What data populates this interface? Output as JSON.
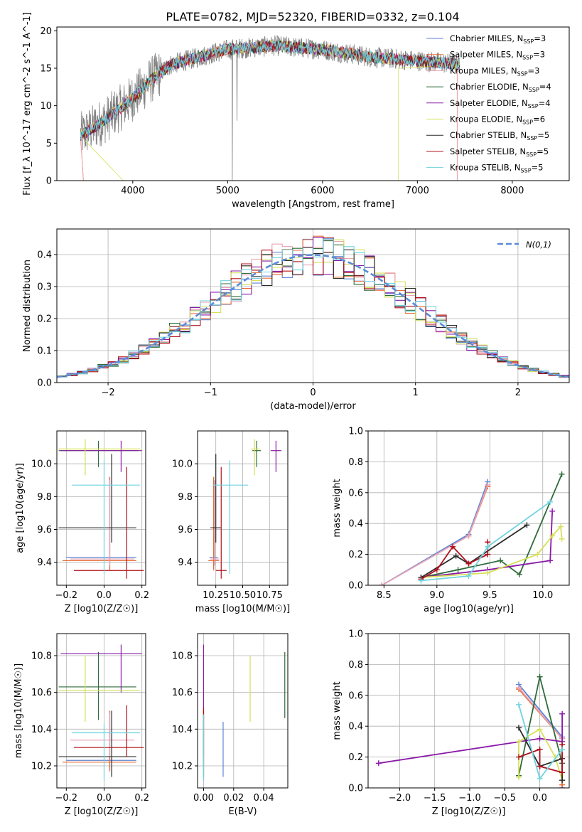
{
  "title": "PLATE=0782, MJD=52320, FIBERID=0332, z=0.104",
  "model_colors": [
    "#5b84d6",
    "#e86b35",
    "#e8a3b3",
    "#2e6b3a",
    "#8a1aa8",
    "#d6e05a",
    "#2b2b2b",
    "#b0101c",
    "#6fd3e0"
  ],
  "chart_data": [
    {
      "id": "spectrum",
      "type": "line",
      "xlabel": "wavelength [Angstrom, rest frame]",
      "ylabel": "Flux [f_λ 10^-17 erg cm^-2 s^-1 A^-1]",
      "xlim": [
        3200,
        8600
      ],
      "ylim": [
        0,
        20.5
      ],
      "xticks": [
        4000,
        5000,
        6000,
        7000,
        8000
      ],
      "yticks": [
        0,
        5,
        10,
        15,
        20
      ],
      "grid": false,
      "legend": "top-right",
      "data_color": "#808080",
      "data_profile": {
        "x": [
          3450,
          3700,
          3850,
          4000,
          4200,
          4400,
          4700,
          5000,
          5500,
          6000,
          6500,
          7000,
          7450
        ],
        "y": [
          6,
          8,
          9.5,
          11,
          13.5,
          15.5,
          16.5,
          17.5,
          18,
          17.5,
          16.5,
          16,
          15.5
        ]
      },
      "series": [
        {
          "name": "Chabrier MILES",
          "nssp": "3"
        },
        {
          "name": "Salpeter MILES",
          "nssp": "3"
        },
        {
          "name": "Kroupa MILES",
          "nssp": "3"
        },
        {
          "name": "Chabrier ELODIE",
          "nssp": "4"
        },
        {
          "name": "Salpeter ELODIE",
          "nssp": "4"
        },
        {
          "name": "Kroupa ELODIE",
          "nssp": "6"
        },
        {
          "name": "Chabrier STELIB",
          "nssp": "5"
        },
        {
          "name": "Salpeter STELIB",
          "nssp": "5"
        },
        {
          "name": "Kroupa STELIB",
          "nssp": "5"
        }
      ]
    },
    {
      "id": "residuals",
      "type": "histogram",
      "xlabel": "(data-model)/error",
      "ylabel": "Normed distribution",
      "xlim": [
        -2.5,
        2.5
      ],
      "ylim": [
        0,
        0.48
      ],
      "xticks": [
        -2,
        -1,
        0,
        1,
        2
      ],
      "yticks": [
        0.0,
        0.1,
        0.2,
        0.3,
        0.4
      ],
      "grid": true,
      "legend": "top-right",
      "reference_label": "N(0,1)",
      "bin_width": 0.1
    },
    {
      "id": "age_vs_Z",
      "type": "errorbar",
      "xlabel": "Z [log10(Z/Z☉)]",
      "ylabel": "age  [log10(age/yr)]",
      "xlim": [
        -0.25,
        0.22
      ],
      "ylim": [
        9.26,
        10.2
      ],
      "xticks": [
        -0.2,
        0.0,
        0.2
      ],
      "yticks": [
        9.4,
        9.6,
        9.8,
        10.0
      ],
      "grid": true,
      "points": [
        {
          "x": 0.03,
          "xlo": -0.2,
          "xhi": 0.17,
          "y": 9.43,
          "ylo": 9.36,
          "yhi": 9.92
        },
        {
          "x": 0.03,
          "xlo": -0.22,
          "xhi": 0.17,
          "y": 9.41,
          "ylo": 9.35,
          "yhi": 9.92
        },
        {
          "x": 0.03,
          "xlo": -0.18,
          "xhi": 0.16,
          "y": 9.42,
          "ylo": 9.38,
          "yhi": 9.9
        },
        {
          "x": -0.03,
          "xlo": -0.24,
          "xhi": 0.18,
          "y": 10.08,
          "ylo": 9.98,
          "yhi": 10.14
        },
        {
          "x": 0.09,
          "xlo": -0.23,
          "xhi": 0.2,
          "y": 10.08,
          "ylo": 9.95,
          "yhi": 10.14
        },
        {
          "x": -0.1,
          "xlo": -0.24,
          "xhi": 0.19,
          "y": 10.09,
          "ylo": 9.93,
          "yhi": 10.15
        },
        {
          "x": 0.04,
          "xlo": -0.24,
          "xhi": 0.17,
          "y": 9.61,
          "ylo": 9.52,
          "yhi": 10.06
        },
        {
          "x": 0.12,
          "xlo": -0.16,
          "xhi": 0.21,
          "y": 9.35,
          "ylo": 9.3,
          "yhi": 9.98
        },
        {
          "x": 0.0,
          "xlo": -0.17,
          "xhi": 0.19,
          "y": 9.87,
          "ylo": 9.33,
          "yhi": 10.02
        }
      ]
    },
    {
      "id": "age_vs_mass",
      "type": "errorbar",
      "xlabel": "mass [log10(M/M☉)]",
      "ylabel": "",
      "xlim": [
        10.08,
        10.92
      ],
      "ylim": [
        9.26,
        10.2
      ],
      "xticks": [
        10.25,
        10.5,
        10.75
      ],
      "yticks": [
        9.4,
        9.6,
        9.8,
        10.0
      ],
      "grid": true,
      "points": [
        {
          "x": 10.23,
          "xlo": 10.19,
          "xhi": 10.27,
          "y": 9.43,
          "ylo": 9.36,
          "yhi": 9.92
        },
        {
          "x": 10.23,
          "xlo": 10.18,
          "xhi": 10.28,
          "y": 9.41,
          "ylo": 9.35,
          "yhi": 9.92
        },
        {
          "x": 10.24,
          "xlo": 10.2,
          "xhi": 10.28,
          "y": 9.42,
          "ylo": 9.38,
          "yhi": 9.9
        },
        {
          "x": 10.63,
          "xlo": 10.59,
          "xhi": 10.67,
          "y": 10.08,
          "ylo": 9.98,
          "yhi": 10.14
        },
        {
          "x": 10.81,
          "xlo": 10.76,
          "xhi": 10.86,
          "y": 10.08,
          "ylo": 9.95,
          "yhi": 10.14
        },
        {
          "x": 10.61,
          "xlo": 10.58,
          "xhi": 10.66,
          "y": 10.09,
          "ylo": 9.93,
          "yhi": 10.15
        },
        {
          "x": 10.25,
          "xlo": 10.2,
          "xhi": 10.3,
          "y": 9.61,
          "ylo": 9.52,
          "yhi": 10.06
        },
        {
          "x": 10.3,
          "xlo": 10.25,
          "xhi": 10.35,
          "y": 9.35,
          "ylo": 9.3,
          "yhi": 9.98
        },
        {
          "x": 10.38,
          "xlo": 10.22,
          "xhi": 10.55,
          "y": 9.87,
          "ylo": 9.33,
          "yhi": 10.02
        }
      ]
    },
    {
      "id": "weight_vs_age",
      "type": "line",
      "xlabel": "age  [log10(age/yr)]",
      "ylabel": "mass weight",
      "xlim": [
        8.35,
        10.25
      ],
      "ylim": [
        0,
        1.0
      ],
      "xticks": [
        8.5,
        9.0,
        9.5,
        10.0
      ],
      "yticks": [
        0.0,
        0.2,
        0.4,
        0.6,
        0.8,
        1.0
      ],
      "grid": true,
      "series": [
        {
          "x": [
            8.48,
            9.3,
            9.48
          ],
          "y": [
            0.0,
            0.33,
            0.67
          ]
        },
        {
          "x": [
            9.3,
            9.48
          ],
          "y": [
            0.32,
            0.64
          ]
        },
        {
          "x": [
            8.48,
            9.3,
            9.48
          ],
          "y": [
            0.0,
            0.32,
            0.65
          ]
        },
        {
          "x": [
            8.85,
            9.2,
            9.6,
            9.78,
            10.18
          ],
          "y": [
            0.05,
            0.1,
            0.16,
            0.07,
            0.72
          ]
        },
        {
          "x": [
            8.85,
            9.48,
            10.07,
            10.09
          ],
          "y": [
            0.05,
            0.1,
            0.16,
            0.48
          ]
        },
        {
          "x": [
            8.85,
            9.48,
            9.95,
            10.09,
            10.17,
            10.18
          ],
          "y": [
            0.05,
            0.08,
            0.2,
            0.32,
            0.38,
            0.3
          ]
        },
        {
          "x": [
            8.85,
            9.18,
            9.3,
            9.85
          ],
          "y": [
            0.05,
            0.19,
            0.14,
            0.39
          ]
        },
        {
          "x": [
            8.85,
            9.0,
            9.15,
            9.3,
            9.48,
            9.48
          ],
          "y": [
            0.04,
            0.1,
            0.25,
            0.14,
            0.2,
            0.28
          ]
        },
        {
          "x": [
            8.85,
            9.3,
            9.48,
            10.07
          ],
          "y": [
            0.03,
            0.06,
            0.25,
            0.54
          ]
        }
      ]
    },
    {
      "id": "mass_vs_Z",
      "type": "errorbar",
      "xlabel": "Z [log10(Z/Z☉)]",
      "ylabel": "mass [log10(M/M☉)]",
      "xlim": [
        -0.25,
        0.22
      ],
      "ylim": [
        10.08,
        10.92
      ],
      "xticks": [
        -0.2,
        0.0,
        0.2
      ],
      "yticks": [
        10.2,
        10.4,
        10.6,
        10.8
      ],
      "grid": true,
      "points": [
        {
          "x": 0.03,
          "xlo": -0.2,
          "xhi": 0.17,
          "y": 10.23,
          "ylo": 10.18,
          "yhi": 10.5
        },
        {
          "x": 0.03,
          "xlo": -0.22,
          "xhi": 0.17,
          "y": 10.22,
          "ylo": 10.17,
          "yhi": 10.5
        },
        {
          "x": 0.03,
          "xlo": -0.18,
          "xhi": 0.16,
          "y": 10.34,
          "ylo": 10.25,
          "yhi": 10.49
        },
        {
          "x": -0.03,
          "xlo": -0.24,
          "xhi": 0.17,
          "y": 10.63,
          "ylo": 10.45,
          "yhi": 10.82
        },
        {
          "x": 0.09,
          "xlo": -0.23,
          "xhi": 0.2,
          "y": 10.81,
          "ylo": 10.6,
          "yhi": 10.86
        },
        {
          "x": -0.1,
          "xlo": -0.24,
          "xhi": 0.19,
          "y": 10.61,
          "ylo": 10.44,
          "yhi": 10.8
        },
        {
          "x": 0.04,
          "xlo": -0.24,
          "xhi": 0.17,
          "y": 10.25,
          "ylo": 10.14,
          "yhi": 10.5
        },
        {
          "x": 0.12,
          "xlo": -0.16,
          "xhi": 0.21,
          "y": 10.3,
          "ylo": 10.25,
          "yhi": 10.53
        },
        {
          "x": 0.0,
          "xlo": -0.17,
          "xhi": 0.19,
          "y": 10.38,
          "ylo": 10.12,
          "yhi": 10.43
        }
      ]
    },
    {
      "id": "mass_vs_ebv",
      "type": "errorbar",
      "xlabel": "E(B-V)",
      "ylabel": "",
      "xlim": [
        -0.004,
        0.056
      ],
      "ylim": [
        10.08,
        10.92
      ],
      "xticks": [
        0.0,
        0.02,
        0.04
      ],
      "yticks": [
        10.2,
        10.4,
        10.6,
        10.8
      ],
      "grid": true,
      "points": [
        {
          "x": 0.013,
          "y": 10.29,
          "ylo": 10.14,
          "yhi": 10.44
        },
        {
          "x": 0.0,
          "y": 10.3,
          "ylo": 10.12,
          "yhi": 10.5
        },
        {
          "x": 0.0,
          "y": 10.33,
          "ylo": 10.18,
          "yhi": 10.5
        },
        {
          "x": 0.054,
          "y": 10.64,
          "ylo": 10.46,
          "yhi": 10.82
        },
        {
          "x": 0.0,
          "y": 10.7,
          "ylo": 10.5,
          "yhi": 10.86
        },
        {
          "x": 0.031,
          "y": 10.62,
          "ylo": 10.44,
          "yhi": 10.8
        },
        {
          "x": 0.0,
          "y": 10.28,
          "ylo": 10.14,
          "yhi": 10.5
        },
        {
          "x": 0.0,
          "y": 10.38,
          "ylo": 10.25,
          "yhi": 10.52
        },
        {
          "x": 0.0,
          "y": 10.3,
          "ylo": 10.12,
          "yhi": 10.48
        }
      ]
    },
    {
      "id": "weight_vs_Z",
      "type": "line",
      "xlabel": "Z [log10(Z/Z☉)]",
      "ylabel": "mass weight",
      "xlim": [
        -2.45,
        0.42
      ],
      "ylim": [
        0,
        1.0
      ],
      "xticks": [
        -2.0,
        -1.5,
        -1.0,
        -0.5,
        0.0
      ],
      "yticks": [
        0.0,
        0.2,
        0.4,
        0.6,
        0.8,
        1.0
      ],
      "grid": true,
      "series": [
        {
          "x": [
            -0.3,
            0.32,
            0.32
          ],
          "y": [
            0.67,
            0.33,
            0.0
          ]
        },
        {
          "x": [
            -0.3,
            0.32,
            0.32
          ],
          "y": [
            0.64,
            0.32,
            0.02
          ]
        },
        {
          "x": [
            -0.3,
            0.32
          ],
          "y": [
            0.65,
            0.32
          ]
        },
        {
          "x": [
            -0.3,
            0.0,
            0.32,
            0.32
          ],
          "y": [
            0.08,
            0.72,
            0.16,
            0.05
          ]
        },
        {
          "x": [
            -2.3,
            0.0,
            0.32,
            0.32
          ],
          "y": [
            0.16,
            0.32,
            0.3,
            0.48
          ]
        },
        {
          "x": [
            -0.3,
            -0.3,
            0.0,
            0.22,
            0.32
          ],
          "y": [
            0.07,
            0.3,
            0.38,
            0.2,
            0.05
          ]
        },
        {
          "x": [
            -0.3,
            0.0,
            0.32,
            0.32
          ],
          "y": [
            0.39,
            0.14,
            0.19,
            0.05
          ]
        },
        {
          "x": [
            -0.3,
            0.0,
            0.0,
            0.32,
            0.32
          ],
          "y": [
            0.2,
            0.25,
            0.14,
            0.1,
            0.28
          ]
        },
        {
          "x": [
            -0.3,
            0.0,
            0.32
          ],
          "y": [
            0.54,
            0.06,
            0.25
          ]
        }
      ]
    }
  ]
}
